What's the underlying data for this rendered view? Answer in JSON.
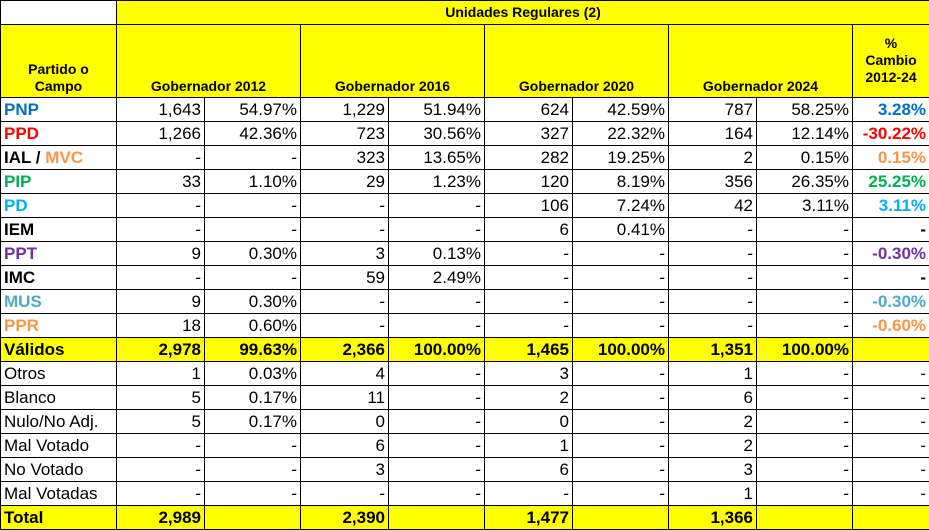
{
  "header": {
    "group_title": "Unidades Regulares (2)",
    "party_col": "Partido o Campo",
    "columns": [
      "Gobernador 2012",
      "Gobernador 2016",
      "Gobernador 2020",
      "Gobernador 2024"
    ],
    "change_col": "% Cambio 2012-24"
  },
  "colors": {
    "header_bg": "#ffff00",
    "PNP": "#0070c0",
    "PPD": "#ff0000",
    "MVC": "#f79646",
    "PIP": "#00b050",
    "PD": "#00b0f0",
    "PPT": "#7030a0",
    "MUS": "#4bacc6",
    "PPR": "#f79646"
  },
  "party_rows": [
    {
      "name": "PNP",
      "vals": [
        "1,643",
        "54.97%",
        "1,229",
        "51.94%",
        "624",
        "42.59%",
        "787",
        "58.25%"
      ],
      "change": "3.28%"
    },
    {
      "name": "PPD",
      "vals": [
        "1,266",
        "42.36%",
        "723",
        "30.56%",
        "327",
        "22.32%",
        "164",
        "12.14%"
      ],
      "change": "-30.22%"
    },
    {
      "name_a": "IAL",
      "sep": " / ",
      "name_b": "MVC",
      "vals": [
        "-",
        "-",
        "323",
        "13.65%",
        "282",
        "19.25%",
        "2",
        "0.15%"
      ],
      "change": "0.15%"
    },
    {
      "name": "PIP",
      "vals": [
        "33",
        "1.10%",
        "29",
        "1.23%",
        "120",
        "8.19%",
        "356",
        "26.35%"
      ],
      "change": "25.25%"
    },
    {
      "name": "PD",
      "vals": [
        "-",
        "-",
        "-",
        "-",
        "106",
        "7.24%",
        "42",
        "3.11%"
      ],
      "change": "3.11%"
    },
    {
      "name": "IEM",
      "vals": [
        "-",
        "-",
        "-",
        "-",
        "6",
        "0.41%",
        "-",
        "-"
      ],
      "change": "-"
    },
    {
      "name": "PPT",
      "vals": [
        "9",
        "0.30%",
        "3",
        "0.13%",
        "-",
        "-",
        "-",
        "-"
      ],
      "change": "-0.30%"
    },
    {
      "name": "IMC",
      "vals": [
        "-",
        "-",
        "59",
        "2.49%",
        "-",
        "-",
        "-",
        "-"
      ],
      "change": "-"
    },
    {
      "name": "MUS",
      "vals": [
        "9",
        "0.30%",
        "-",
        "-",
        "-",
        "-",
        "-",
        "-"
      ],
      "change": "-0.30%"
    },
    {
      "name": "PPR",
      "vals": [
        "18",
        "0.60%",
        "-",
        "-",
        "-",
        "-",
        "-",
        "-"
      ],
      "change": "-0.60%"
    }
  ],
  "validos": {
    "label": "Válidos",
    "vals": [
      "2,978",
      "99.63%",
      "2,366",
      "100.00%",
      "1,465",
      "100.00%",
      "1,351",
      "100.00%"
    ],
    "change": ""
  },
  "other_rows": [
    {
      "label": "Otros",
      "vals": [
        "1",
        "0.03%",
        "4",
        "-",
        "3",
        "-",
        "1",
        "-"
      ],
      "change": "-"
    },
    {
      "label": "Blanco",
      "vals": [
        "5",
        "0.17%",
        "11",
        "-",
        "2",
        "-",
        "6",
        "-"
      ],
      "change": "-"
    },
    {
      "label": "Nulo/No Adj.",
      "vals": [
        "5",
        "0.17%",
        "0",
        "-",
        "0",
        "-",
        "2",
        "-"
      ],
      "change": "-"
    },
    {
      "label": "Mal Votado",
      "vals": [
        "-",
        "-",
        "6",
        "-",
        "1",
        "-",
        "2",
        "-"
      ],
      "change": "-"
    },
    {
      "label": "No Votado",
      "vals": [
        "-",
        "-",
        "3",
        "-",
        "6",
        "-",
        "3",
        "-"
      ],
      "change": "-"
    },
    {
      "label": "Mal Votadas",
      "vals": [
        "-",
        "-",
        "-",
        "-",
        "-",
        "-",
        "1",
        "-"
      ],
      "change": "-"
    }
  ],
  "total": {
    "label": "Total",
    "vals": [
      "2,989",
      "",
      "2,390",
      "",
      "1,477",
      "",
      "1,366",
      ""
    ],
    "change": ""
  }
}
